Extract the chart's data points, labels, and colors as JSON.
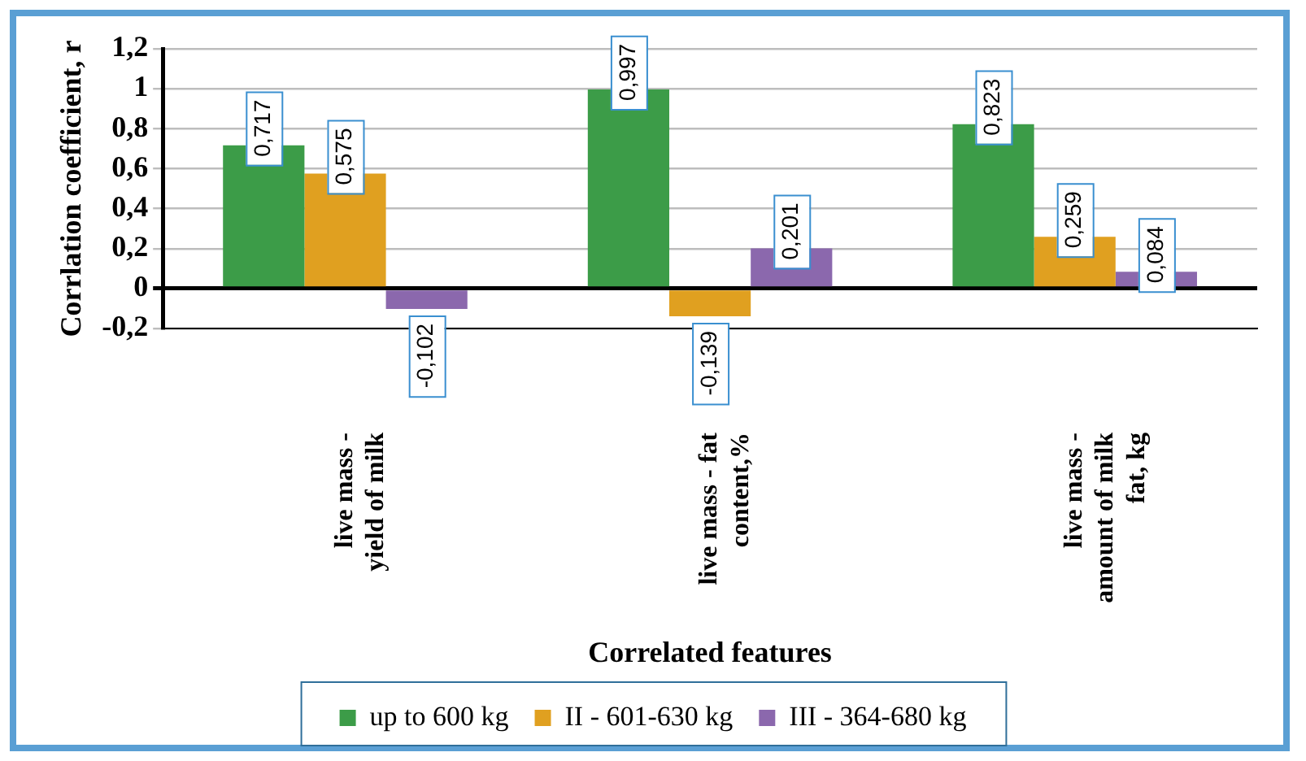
{
  "chart_data": {
    "type": "bar",
    "xlabel": "Correlated features",
    "ylabel": "Corrlation coefficient, r",
    "categories": [
      "live mass - yield of milk",
      "live mass - fat content,%",
      "live mass - amount of milk fat, kg"
    ],
    "series": [
      {
        "name": "up to 600 kg",
        "color": "#3c9c48",
        "values": [
          0.717,
          0.997,
          0.823
        ],
        "value_labels": [
          "0,717",
          "0,997",
          "0,823"
        ]
      },
      {
        "name": "II - 601-630 kg",
        "color": "#e0a020",
        "values": [
          0.575,
          -0.139,
          0.259
        ],
        "value_labels": [
          "0,575",
          "-0,139",
          "0,259"
        ]
      },
      {
        "name": "III - 364-680 kg",
        "color": "#8b68ad",
        "values": [
          -0.102,
          0.201,
          0.084
        ],
        "value_labels": [
          "-0,102",
          "0,201",
          "0,084"
        ]
      }
    ],
    "ylim": [
      -0.2,
      1.2
    ],
    "yticks": [
      {
        "value": -0.2,
        "label": "-0,2"
      },
      0,
      {
        "value": 0.2,
        "label": "0,2"
      },
      {
        "value": 0.4,
        "label": "0,4"
      },
      {
        "value": 0.6,
        "label": "0,6"
      },
      {
        "value": 0.8,
        "label": "0,8"
      },
      1,
      {
        "value": 1.2,
        "label": "1,2"
      }
    ],
    "grid": "y",
    "legend": "bottom"
  }
}
